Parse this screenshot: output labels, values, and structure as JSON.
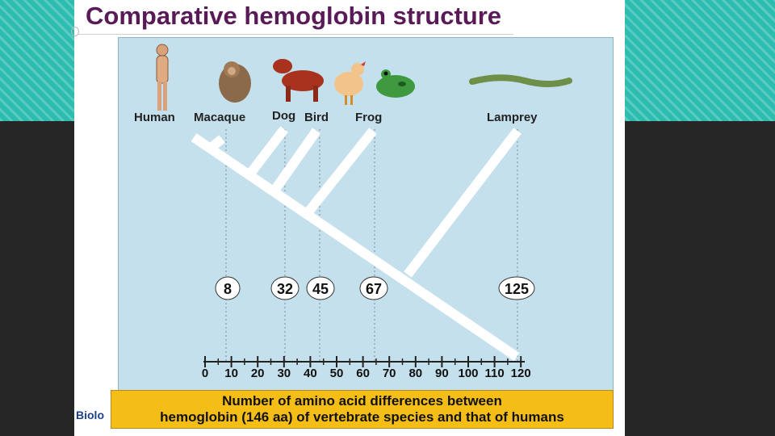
{
  "slide": {
    "title": "Comparative hemoglobin structure",
    "footer_text": "Biolo",
    "caption_lines": [
      "Number of amino acid differences between",
      "hemoglobin (146 aa) of vertebrate species and that of humans"
    ]
  },
  "species": [
    {
      "name": "Human",
      "icon": "human-icon",
      "differences": null
    },
    {
      "name": "Macaque",
      "icon": "macaque-icon",
      "differences": "8"
    },
    {
      "name": "Dog",
      "icon": "dog-icon",
      "differences": "32"
    },
    {
      "name": "Bird",
      "icon": "bird-icon",
      "differences": "45"
    },
    {
      "name": "Frog",
      "icon": "frog-icon",
      "differences": "67"
    },
    {
      "name": "Lamprey",
      "icon": "lamprey-icon",
      "differences": "125"
    }
  ],
  "axis": {
    "ticks": [
      "0",
      "10",
      "20",
      "30",
      "40",
      "50",
      "60",
      "70",
      "80",
      "90",
      "100",
      "110",
      "120"
    ]
  },
  "colors": {
    "title": "#5a1a58",
    "panel": "#c4e0ec",
    "caption_bg": "#f5be17",
    "teal_band": "#2dbcb0",
    "dark_band": "#262626"
  }
}
